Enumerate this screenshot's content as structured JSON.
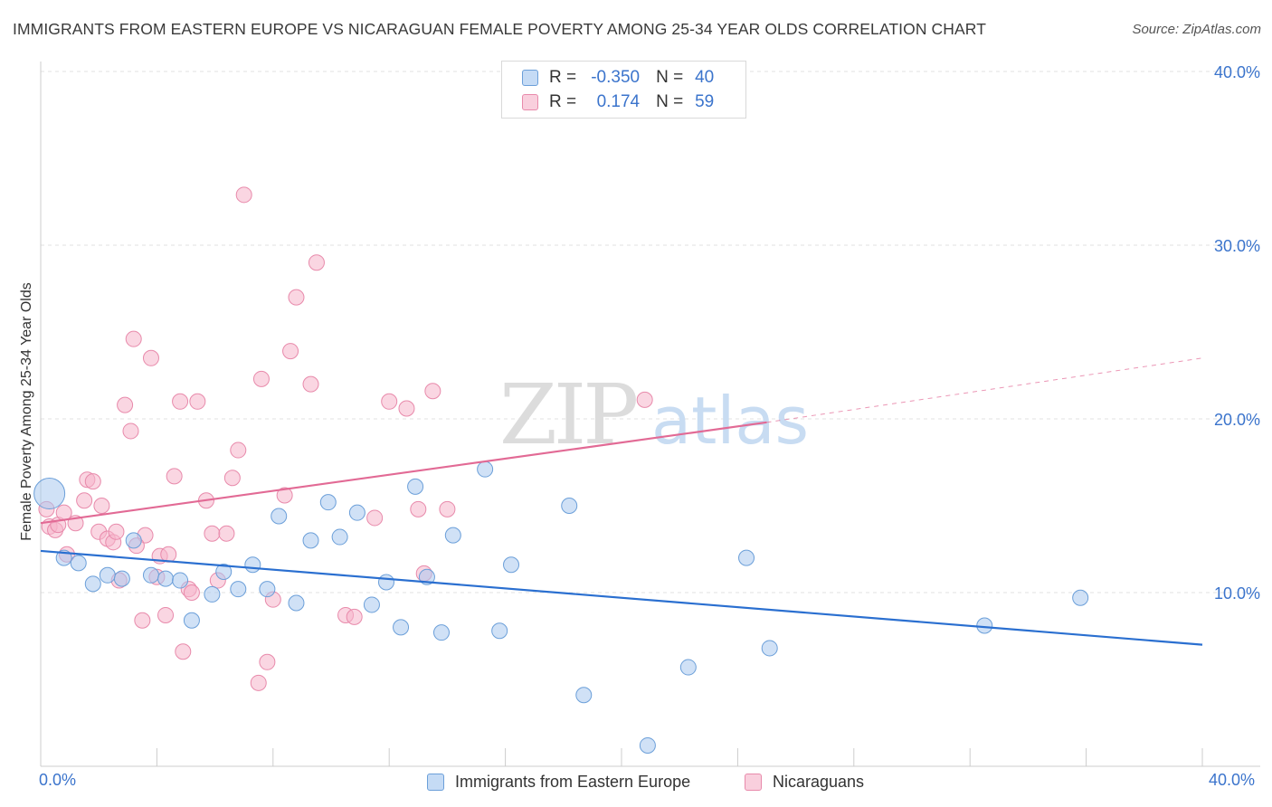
{
  "title": "IMMIGRANTS FROM EASTERN EUROPE VS NICARAGUAN FEMALE POVERTY AMONG 25-34 YEAR OLDS CORRELATION CHART",
  "source": "Source: ZipAtlas.com",
  "watermark": {
    "zip": "ZIP",
    "atlas": "atlas"
  },
  "legend": {
    "rows": [
      {
        "r_label": "R =",
        "r_value": "-0.350",
        "n_label": "N =",
        "n_value": "40",
        "color": "#a9c8ef"
      },
      {
        "r_label": "R =",
        "r_value": "0.174",
        "n_label": "N =",
        "n_value": "59",
        "color": "#f5b5cb"
      }
    ]
  },
  "bottom_legend": {
    "series1": "Immigrants from Eastern Europe",
    "series2": "Nicaraguans"
  },
  "axis": {
    "x_min_label": "0.0%",
    "x_max_label": "40.0%",
    "y_tick_labels": [
      "10.0%",
      "20.0%",
      "30.0%",
      "40.0%"
    ]
  },
  "colors": {
    "blue_fill": "#a9c8ef",
    "blue_stroke": "#6b9fd9",
    "blue_line": "#2a6fd0",
    "pink_fill": "#f5b5cb",
    "pink_stroke": "#e88aab",
    "pink_line": "#e26a95",
    "tick_text": "#3b74cc"
  },
  "chart_data": {
    "type": "scatter",
    "title": "IMMIGRANTS FROM EASTERN EUROPE VS NICARAGUAN FEMALE POVERTY AMONG 25-34 YEAR OLDS CORRELATION CHART",
    "xlabel": "",
    "ylabel": "Female Poverty Among 25-34 Year Olds",
    "xlim": [
      0,
      40
    ],
    "ylim": [
      0,
      40
    ],
    "grid": true,
    "series": [
      {
        "name": "Immigrants from Eastern Europe",
        "r": -0.35,
        "n": 40,
        "trend": {
          "x0": 0,
          "y0": 12.4,
          "x1": 40,
          "y1": 7.0
        },
        "points": [
          {
            "x": 0.3,
            "y": 15.7,
            "big": true
          },
          {
            "x": 0.8,
            "y": 12.0
          },
          {
            "x": 1.3,
            "y": 11.7
          },
          {
            "x": 1.8,
            "y": 10.5
          },
          {
            "x": 2.3,
            "y": 11.0
          },
          {
            "x": 2.8,
            "y": 10.8
          },
          {
            "x": 3.2,
            "y": 13.0
          },
          {
            "x": 3.8,
            "y": 11.0
          },
          {
            "x": 4.3,
            "y": 10.8
          },
          {
            "x": 4.8,
            "y": 10.7
          },
          {
            "x": 5.2,
            "y": 8.4
          },
          {
            "x": 5.9,
            "y": 9.9
          },
          {
            "x": 6.3,
            "y": 11.2
          },
          {
            "x": 6.8,
            "y": 10.2
          },
          {
            "x": 7.3,
            "y": 11.6
          },
          {
            "x": 7.8,
            "y": 10.2
          },
          {
            "x": 8.2,
            "y": 14.4
          },
          {
            "x": 8.8,
            "y": 9.4
          },
          {
            "x": 9.3,
            "y": 13.0
          },
          {
            "x": 9.9,
            "y": 15.2
          },
          {
            "x": 10.3,
            "y": 13.2
          },
          {
            "x": 10.9,
            "y": 14.6
          },
          {
            "x": 11.4,
            "y": 9.3
          },
          {
            "x": 11.9,
            "y": 10.6
          },
          {
            "x": 12.4,
            "y": 8.0
          },
          {
            "x": 12.9,
            "y": 16.1
          },
          {
            "x": 13.3,
            "y": 10.9
          },
          {
            "x": 13.8,
            "y": 7.7
          },
          {
            "x": 14.2,
            "y": 13.3
          },
          {
            "x": 15.3,
            "y": 17.1
          },
          {
            "x": 15.8,
            "y": 7.8
          },
          {
            "x": 16.2,
            "y": 11.6
          },
          {
            "x": 18.2,
            "y": 15.0
          },
          {
            "x": 18.7,
            "y": 4.1
          },
          {
            "x": 20.9,
            "y": 1.2
          },
          {
            "x": 22.3,
            "y": 5.7
          },
          {
            "x": 24.3,
            "y": 12.0
          },
          {
            "x": 25.1,
            "y": 6.8
          },
          {
            "x": 32.5,
            "y": 8.1
          },
          {
            "x": 35.8,
            "y": 9.7
          }
        ]
      },
      {
        "name": "Nicaraguans",
        "r": 0.174,
        "n": 59,
        "trend": {
          "x0": 0,
          "y0": 14.0,
          "x1": 25,
          "y1": 19.8,
          "dash_x1": 40,
          "dash_y1": 23.5
        },
        "points": [
          {
            "x": 0.2,
            "y": 14.8
          },
          {
            "x": 0.3,
            "y": 13.8
          },
          {
            "x": 0.5,
            "y": 13.6
          },
          {
            "x": 0.6,
            "y": 13.9
          },
          {
            "x": 0.8,
            "y": 14.6
          },
          {
            "x": 0.9,
            "y": 12.2
          },
          {
            "x": 1.2,
            "y": 14.0
          },
          {
            "x": 1.5,
            "y": 15.3
          },
          {
            "x": 1.6,
            "y": 16.5
          },
          {
            "x": 1.8,
            "y": 16.4
          },
          {
            "x": 2.0,
            "y": 13.5
          },
          {
            "x": 2.1,
            "y": 15.0
          },
          {
            "x": 2.3,
            "y": 13.1
          },
          {
            "x": 2.5,
            "y": 12.9
          },
          {
            "x": 2.6,
            "y": 13.5
          },
          {
            "x": 2.7,
            "y": 10.7
          },
          {
            "x": 2.9,
            "y": 20.8
          },
          {
            "x": 3.1,
            "y": 19.3
          },
          {
            "x": 3.2,
            "y": 24.6
          },
          {
            "x": 3.5,
            "y": 8.4
          },
          {
            "x": 3.6,
            "y": 13.3
          },
          {
            "x": 3.8,
            "y": 23.5
          },
          {
            "x": 4.0,
            "y": 10.9
          },
          {
            "x": 4.1,
            "y": 12.1
          },
          {
            "x": 4.3,
            "y": 8.7
          },
          {
            "x": 4.4,
            "y": 12.2
          },
          {
            "x": 4.6,
            "y": 16.7
          },
          {
            "x": 4.8,
            "y": 21.0
          },
          {
            "x": 4.9,
            "y": 6.6
          },
          {
            "x": 5.1,
            "y": 10.2
          },
          {
            "x": 5.2,
            "y": 10.0
          },
          {
            "x": 5.4,
            "y": 21.0
          },
          {
            "x": 5.7,
            "y": 15.3
          },
          {
            "x": 5.9,
            "y": 13.4
          },
          {
            "x": 6.1,
            "y": 10.7
          },
          {
            "x": 6.4,
            "y": 13.4
          },
          {
            "x": 6.6,
            "y": 16.6
          },
          {
            "x": 6.8,
            "y": 18.2
          },
          {
            "x": 7.0,
            "y": 32.9
          },
          {
            "x": 7.5,
            "y": 4.8
          },
          {
            "x": 7.6,
            "y": 22.3
          },
          {
            "x": 7.8,
            "y": 6.0
          },
          {
            "x": 8.0,
            "y": 9.6
          },
          {
            "x": 8.4,
            "y": 15.6
          },
          {
            "x": 8.6,
            "y": 23.9
          },
          {
            "x": 8.8,
            "y": 27.0
          },
          {
            "x": 9.3,
            "y": 22.0
          },
          {
            "x": 9.5,
            "y": 29.0
          },
          {
            "x": 10.5,
            "y": 8.7
          },
          {
            "x": 10.8,
            "y": 8.6
          },
          {
            "x": 11.5,
            "y": 14.3
          },
          {
            "x": 12.0,
            "y": 21.0
          },
          {
            "x": 12.6,
            "y": 20.6
          },
          {
            "x": 13.0,
            "y": 14.8
          },
          {
            "x": 13.2,
            "y": 11.1
          },
          {
            "x": 13.5,
            "y": 21.6
          },
          {
            "x": 14.0,
            "y": 14.8
          },
          {
            "x": 20.8,
            "y": 21.1
          },
          {
            "x": 3.3,
            "y": 12.7
          }
        ]
      }
    ]
  }
}
